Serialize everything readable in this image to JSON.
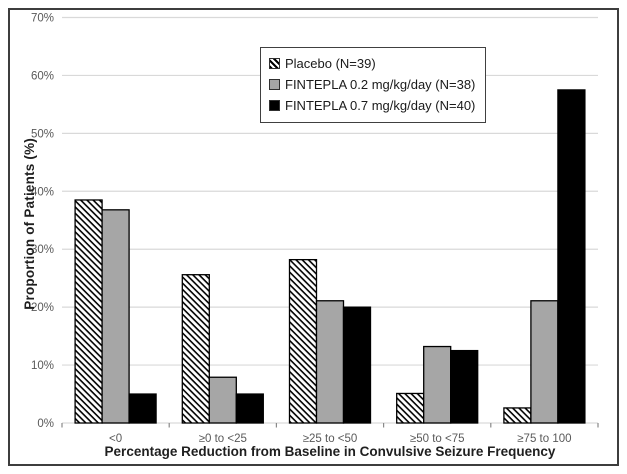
{
  "figure": {
    "border_color": "#3d3d3d",
    "background": "#ffffff"
  },
  "chart_data": {
    "type": "bar",
    "title": "",
    "xlabel": "Percentage Reduction from Baseline in Convulsive Seizure Frequency",
    "ylabel": "Proportion of Patients (%)",
    "categories": [
      "<0",
      "≥0 to <25",
      "≥25 to <50",
      "≥50 to <75",
      "≥75 to 100"
    ],
    "series": [
      {
        "name": "Placebo (N=39)",
        "values": [
          38.5,
          25.6,
          28.2,
          5.1,
          2.6
        ],
        "style": "hatch",
        "color": "#000000",
        "fill_background": "#ffffff"
      },
      {
        "name": "FINTEPLA 0.2 mg/kg/day  (N=38)",
        "values": [
          36.8,
          7.9,
          21.1,
          13.2,
          21.1
        ],
        "style": "solid",
        "color": "#a6a6a6"
      },
      {
        "name": "FINTEPLA 0.7 mg/kg/day  (N=40)",
        "values": [
          5.0,
          5.0,
          20.0,
          12.5,
          57.5
        ],
        "style": "solid",
        "color": "#000000"
      }
    ],
    "ylim": [
      0,
      70
    ],
    "ytick_step": 10,
    "ytick_labels": [
      "0%",
      "10%",
      "20%",
      "30%",
      "40%",
      "50%",
      "60%",
      "70%"
    ],
    "grid": "horizontal",
    "gridline_color": "#d9d9d9",
    "axis_tick_color": "#898989",
    "tick_label_color": "#595959",
    "bar_outline_color": "#000000",
    "legend_position": "inside-top-center",
    "legend_border_color": "#404040"
  }
}
